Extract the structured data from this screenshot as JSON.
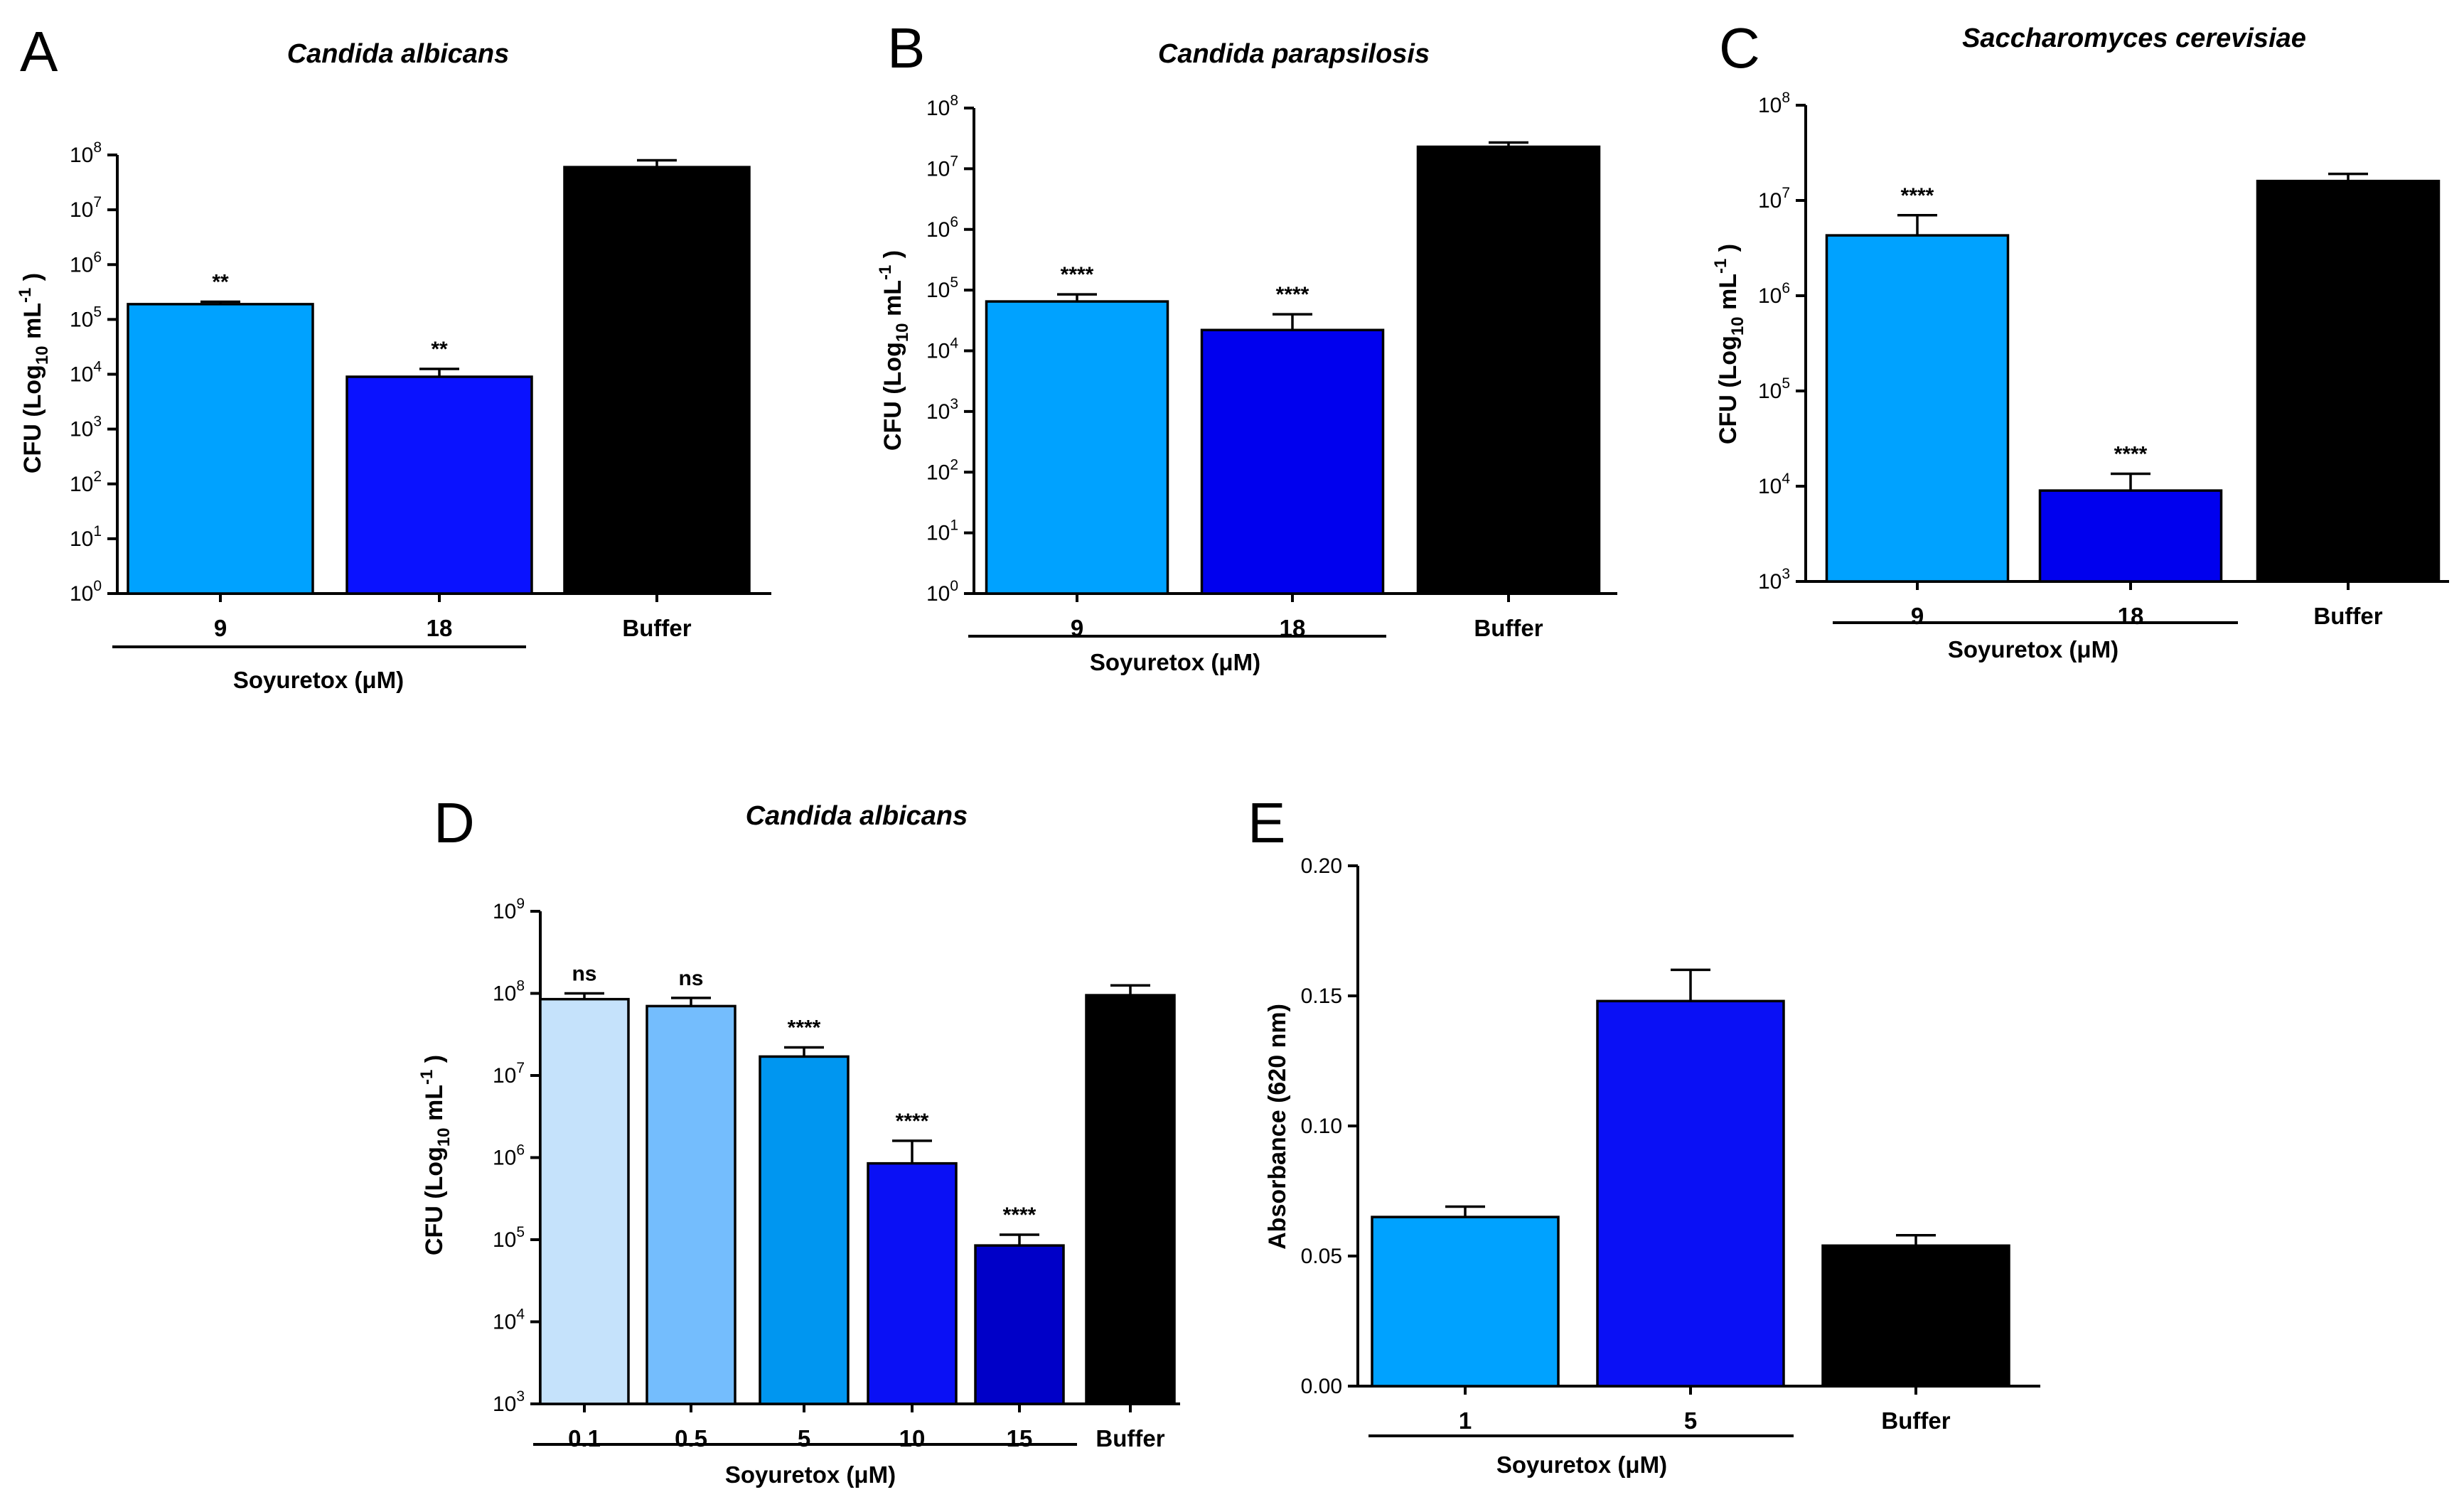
{
  "chart_data": [
    {
      "panel": "A",
      "title": "Candida albicans",
      "type": "bar",
      "yscale": "log",
      "ylabel": "CFU (Log10 mL-1)",
      "ylabel_parts": {
        "main": "CFU (Log",
        "sub": "10",
        "mid": " mL",
        "sup": "-1",
        "end": " )"
      },
      "ylim": [
        1,
        100000000
      ],
      "yticks": [
        {
          "base": "10",
          "exp": "0"
        },
        {
          "base": "10",
          "exp": "1"
        },
        {
          "base": "10",
          "exp": "2"
        },
        {
          "base": "10",
          "exp": "3"
        },
        {
          "base": "10",
          "exp": "4"
        },
        {
          "base": "10",
          "exp": "5"
        },
        {
          "base": "10",
          "exp": "6"
        },
        {
          "base": "10",
          "exp": "7"
        },
        {
          "base": "10",
          "exp": "8"
        }
      ],
      "categories": [
        "9",
        "18",
        "Buffer"
      ],
      "values": [
        190000,
        9000,
        60000000
      ],
      "errors_upper": [
        210000,
        12500,
        80000000
      ],
      "colors": [
        "#00a2ff",
        "#0a12ff",
        "#000000"
      ],
      "significance": [
        "**",
        "**",
        ""
      ],
      "group_label": "Soyuretox (μM)"
    },
    {
      "panel": "B",
      "title": "Candida parapsilosis",
      "type": "bar",
      "yscale": "log",
      "ylabel": "CFU (Log10 mL-1)",
      "ylabel_parts": {
        "main": "CFU (Log",
        "sub": "10",
        "mid": " mL",
        "sup": "-1",
        "end": " )"
      },
      "ylim": [
        1,
        100000000
      ],
      "yticks": [
        {
          "base": "10",
          "exp": "0"
        },
        {
          "base": "10",
          "exp": "1"
        },
        {
          "base": "10",
          "exp": "2"
        },
        {
          "base": "10",
          "exp": "3"
        },
        {
          "base": "10",
          "exp": "4"
        },
        {
          "base": "10",
          "exp": "5"
        },
        {
          "base": "10",
          "exp": "6"
        },
        {
          "base": "10",
          "exp": "7"
        },
        {
          "base": "10",
          "exp": "8"
        }
      ],
      "categories": [
        "9",
        "18",
        "Buffer"
      ],
      "values": [
        65000,
        22000,
        23000000
      ],
      "errors_upper": [
        85000,
        40000,
        27000000
      ],
      "colors": [
        "#00a2ff",
        "#0000ee",
        "#000000"
      ],
      "significance": [
        "****",
        "****",
        ""
      ],
      "group_label": "Soyuretox (μM)"
    },
    {
      "panel": "C",
      "title": "Saccharomyces cerevisiae",
      "type": "bar",
      "yscale": "log",
      "ylabel": "CFU (Log10 mL-1)",
      "ylabel_parts": {
        "main": "CFU (Log",
        "sub": "10",
        "mid": " mL",
        "sup": "-1",
        "end": " )"
      },
      "ylim": [
        1000,
        100000000
      ],
      "yticks": [
        {
          "base": "10",
          "exp": "3"
        },
        {
          "base": "10",
          "exp": "4"
        },
        {
          "base": "10",
          "exp": "5"
        },
        {
          "base": "10",
          "exp": "6"
        },
        {
          "base": "10",
          "exp": "7"
        },
        {
          "base": "10",
          "exp": "8"
        }
      ],
      "categories": [
        "9",
        "18",
        "Buffer"
      ],
      "values": [
        4300000,
        9000,
        16000000
      ],
      "errors_upper": [
        7000000,
        13500,
        19000000
      ],
      "colors": [
        "#00a2ff",
        "#0000ee",
        "#000000"
      ],
      "significance": [
        "****",
        "****",
        ""
      ],
      "group_label": "Soyuretox (μM)"
    },
    {
      "panel": "D",
      "title": "Candida albicans",
      "type": "bar",
      "yscale": "log",
      "ylabel": "CFU (Log10 mL-1)",
      "ylabel_parts": {
        "main": "CFU (Log",
        "sub": "10",
        "mid": " mL",
        "sup": "-1",
        "end": " )"
      },
      "ylim": [
        1000,
        1000000000
      ],
      "yticks": [
        {
          "base": "10",
          "exp": "3"
        },
        {
          "base": "10",
          "exp": "4"
        },
        {
          "base": "10",
          "exp": "5"
        },
        {
          "base": "10",
          "exp": "6"
        },
        {
          "base": "10",
          "exp": "7"
        },
        {
          "base": "10",
          "exp": "8"
        },
        {
          "base": "10",
          "exp": "9"
        }
      ],
      "categories": [
        "0.1",
        "0.5",
        "5",
        "10",
        "15",
        "Buffer"
      ],
      "values": [
        85000000,
        70000000,
        17000000,
        850000,
        85000,
        95000000
      ],
      "errors_upper": [
        100000000,
        88000000,
        22000000,
        1600000,
        115000,
        125000000
      ],
      "colors": [
        "#c5e2fb",
        "#74bdfd",
        "#0096f0",
        "#0a10f5",
        "#0000c8",
        "#000000"
      ],
      "significance": [
        "ns",
        "ns",
        "****",
        "****",
        "****",
        ""
      ],
      "group_label": "Soyuretox (μM)"
    },
    {
      "panel": "E",
      "title": "",
      "type": "bar",
      "yscale": "linear",
      "ylabel": "Absorbance (620 nm)",
      "ylim": [
        0,
        0.2
      ],
      "yticks": [
        "0.00",
        "0.05",
        "0.10",
        "0.15",
        "0.20"
      ],
      "categories": [
        "1",
        "5",
        "Buffer"
      ],
      "values": [
        0.065,
        0.148,
        0.054
      ],
      "errors_upper": [
        0.069,
        0.16,
        0.058
      ],
      "colors": [
        "#00a2ff",
        "#0a10f5",
        "#000000"
      ],
      "significance": [
        "",
        "",
        ""
      ],
      "group_label": "Soyuretox (μM)"
    }
  ]
}
